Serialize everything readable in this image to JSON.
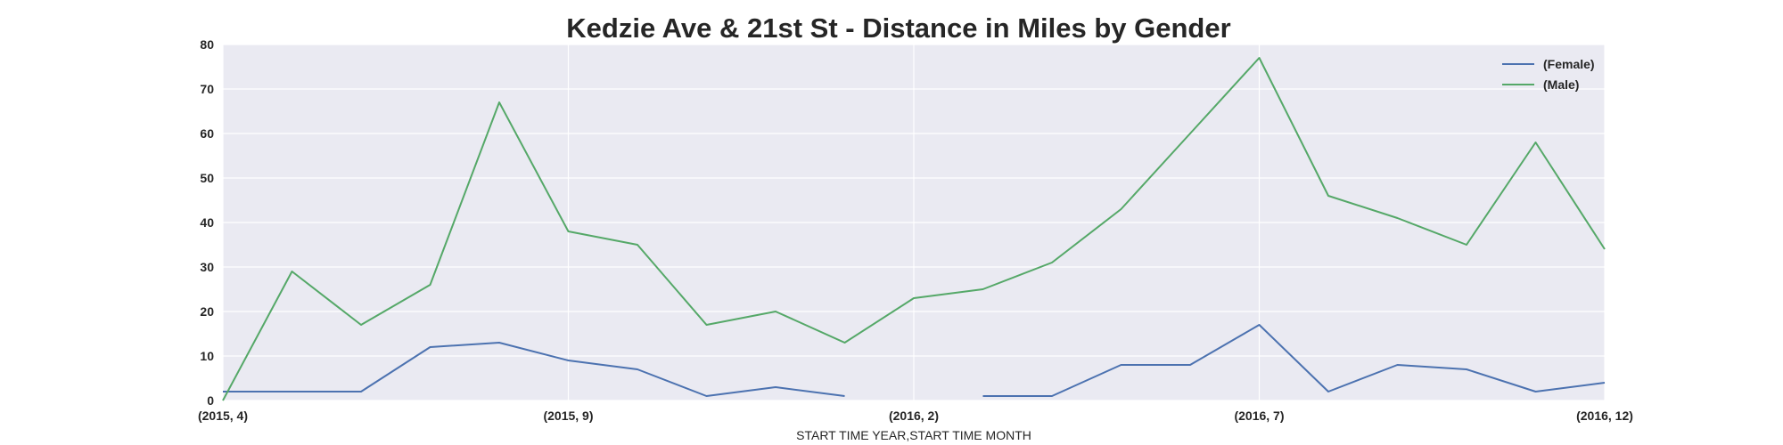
{
  "chart_data": {
    "type": "line",
    "title": "Kedzie Ave & 21st St - Distance in Miles by Gender",
    "xlabel": "START TIME YEAR,START TIME MONTH",
    "ylabel": "",
    "ylim": [
      0,
      80
    ],
    "yticks": [
      0,
      10,
      20,
      30,
      40,
      50,
      60,
      70,
      80
    ],
    "grid": true,
    "legend_position": "top-right",
    "x": [
      "(2015, 4)",
      "(2015, 5)",
      "(2015, 6)",
      "(2015, 7)",
      "(2015, 8)",
      "(2015, 9)",
      "(2015, 10)",
      "(2015, 11)",
      "(2015, 12)",
      "(2016, 1)",
      "(2016, 2)",
      "(2016, 3)",
      "(2016, 4)",
      "(2016, 5)",
      "(2016, 6)",
      "(2016, 7)",
      "(2016, 8)",
      "(2016, 9)",
      "(2016, 10)",
      "(2016, 11)",
      "(2016, 12)"
    ],
    "xticks": [
      "(2015, 4)",
      "(2015, 9)",
      "(2016, 2)",
      "(2016, 7)",
      "(2016, 12)"
    ],
    "series": [
      {
        "name": "(Female)",
        "color": "#4c72b0",
        "values": [
          2,
          2,
          2,
          12,
          13,
          9,
          7,
          1,
          3,
          1,
          null,
          1,
          1,
          8,
          8,
          17,
          2,
          8,
          7,
          2,
          4
        ]
      },
      {
        "name": "(Male)",
        "color": "#55a868",
        "values": [
          0,
          29,
          17,
          26,
          67,
          38,
          35,
          17,
          20,
          13,
          23,
          25,
          31,
          43,
          60,
          77,
          46,
          41,
          35,
          58,
          34
        ]
      }
    ]
  }
}
